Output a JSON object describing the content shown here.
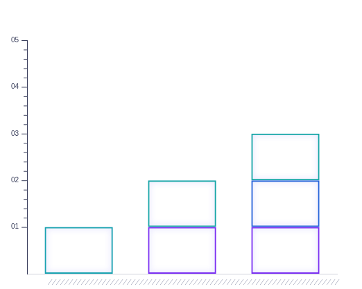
{
  "chart_data": {
    "type": "bar",
    "stacked": true,
    "grid": false,
    "tick_labels": "y",
    "categories": [
      null,
      null,
      null
    ],
    "series": [
      {
        "values": [
          1,
          1,
          1
        ],
        "colors": [
          "#1aa3b0",
          "#7b2ff2",
          "#7b2ff2"
        ]
      },
      {
        "values": [
          0,
          1,
          1
        ],
        "colors": [
          "#1aa3b0",
          "#16a6a6",
          "#2563d9"
        ]
      },
      {
        "values": [
          0,
          0,
          1
        ],
        "colors": [
          "#1aa3b0",
          "#16a6a6",
          "#16a6a6"
        ]
      }
    ],
    "ylim": [
      0,
      5
    ],
    "yticks": [
      {
        "value": 1,
        "label": "01"
      },
      {
        "value": 2,
        "label": "02"
      },
      {
        "value": 3,
        "label": "03"
      },
      {
        "value": 4,
        "label": "04"
      },
      {
        "value": 5,
        "label": "05"
      }
    ]
  }
}
